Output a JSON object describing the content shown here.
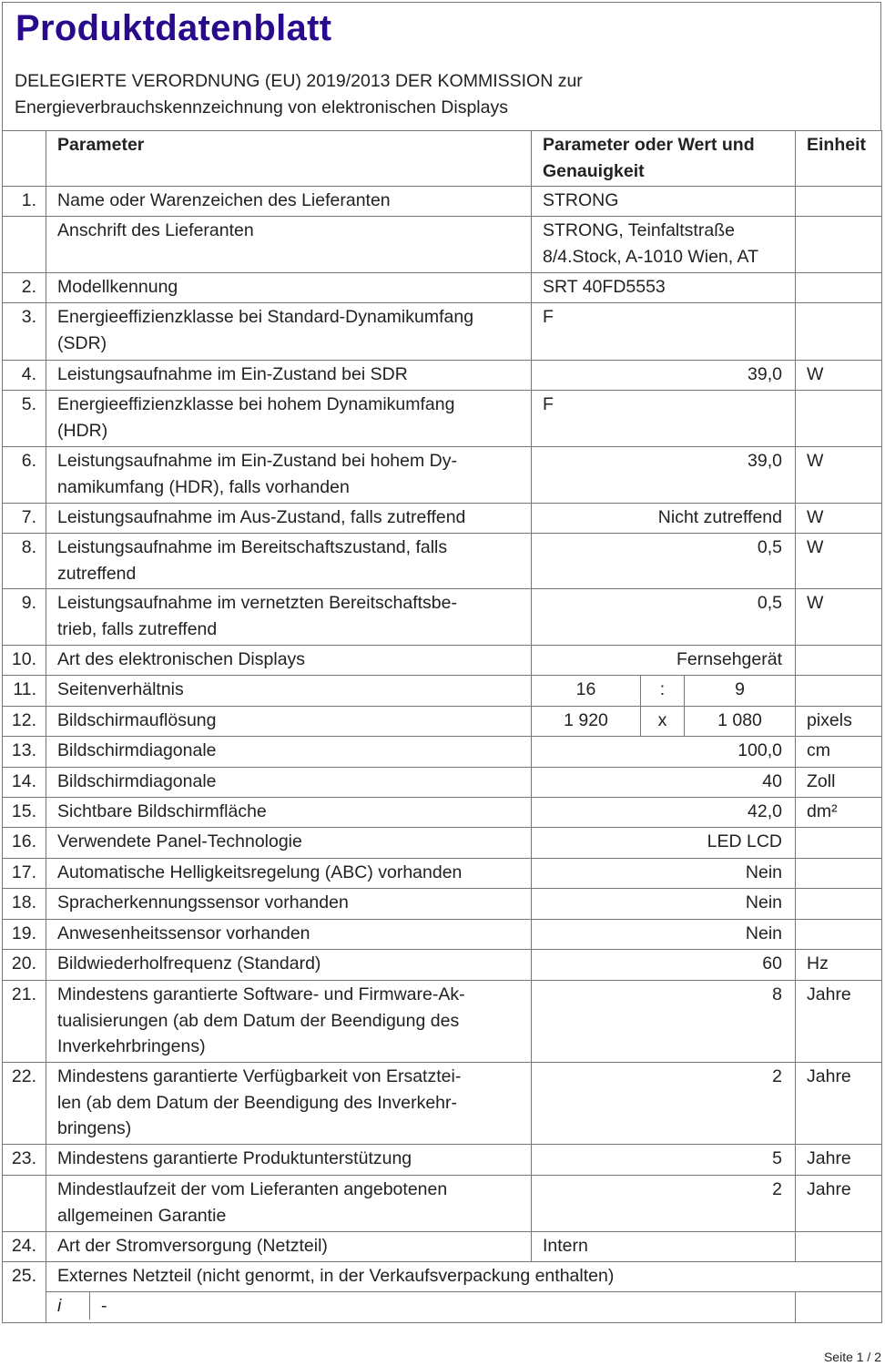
{
  "header": {
    "title": "Produktdatenblatt",
    "subtitle": "DELEGIERTE VERORDNUNG (EU) 2019/2013 DER KOMMISSION zur\nEnergieverbrauchskennzeichnung von elektronischen Displays"
  },
  "columns": {
    "param": "Parameter",
    "value": "Parameter oder Wert und\nGenauigkeit",
    "unit": "Einheit"
  },
  "colors": {
    "title": "#2a0a8c",
    "border": "#777777"
  },
  "rows": [
    {
      "num": "1.",
      "param": "Name oder Warenzeichen des Lieferanten",
      "value": "STRONG",
      "align": "left",
      "unit": "",
      "h": 33
    },
    {
      "num": "",
      "param": "Anschrift des Lieferanten",
      "value": "STRONG, Teinfaltstraße\n8/4.Stock, A-1010 Wien, AT",
      "align": "left",
      "unit": "",
      "h": 62
    },
    {
      "num": "2.",
      "param": "Modellkennung",
      "value": "SRT 40FD5553",
      "align": "left",
      "unit": "",
      "h": 33
    },
    {
      "num": "3.",
      "param": "Energieeffizienzklasse bei Standard-Dynamikumfang\n(SDR)",
      "value": "F",
      "align": "left",
      "unit": "",
      "h": 63
    },
    {
      "num": "4.",
      "param": "Leistungsaufnahme im Ein-Zustand bei SDR",
      "value": "39,0",
      "align": "right",
      "unit": "W",
      "h": 33
    },
    {
      "num": "5.",
      "param": "Energieeffizienzklasse bei hohem Dynamikumfang\n(HDR)",
      "value": "F",
      "align": "left",
      "unit": "",
      "h": 62
    },
    {
      "num": "6.",
      "param": "Leistungsaufnahme im Ein-Zustand bei hohem Dy-\nnamikumfang (HDR), falls vorhanden",
      "value": "39,0",
      "align": "right",
      "unit": "W",
      "h": 62
    },
    {
      "num": "7.",
      "param": "Leistungsaufnahme im Aus-Zustand, falls zutreffend",
      "value": "Nicht zutreffend",
      "align": "right",
      "unit": "W",
      "h": 33
    },
    {
      "num": "8.",
      "param": "Leistungsaufnahme im Bereitschaftszustand, falls\nzutreffend",
      "value": "0,5",
      "align": "right",
      "unit": "W",
      "h": 61
    },
    {
      "num": "9.",
      "param": "Leistungsaufnahme im vernetzten Bereitschaftsbe-\ntrieb, falls zutreffend",
      "value": "0,5",
      "align": "right",
      "unit": "W",
      "h": 62
    },
    {
      "num": "10.",
      "param": "Art des elektronischen Displays",
      "value": "Fernsehgerät",
      "align": "right",
      "unit": "",
      "h": 33
    },
    {
      "num": "11.",
      "param": "Seitenverhältnis",
      "split": [
        "16",
        ":",
        "9"
      ],
      "unit": "",
      "h": 34
    },
    {
      "num": "12.",
      "param": "Bildschirmauflösung",
      "split": [
        "1 920",
        "x",
        "1 080"
      ],
      "unit": "pixels",
      "h": 33
    },
    {
      "num": "13.",
      "param": "Bildschirmdiagonale",
      "value": "100,0",
      "align": "right",
      "unit": "cm",
      "h": 34
    },
    {
      "num": "14.",
      "param": "Bildschirmdiagonale",
      "value": "40",
      "align": "right",
      "unit": "Zoll",
      "h": 33
    },
    {
      "num": "15.",
      "param": "Sichtbare Bildschirmfläche",
      "value": "42,0",
      "align": "right",
      "unit": "dm²",
      "h": 33
    },
    {
      "num": "16.",
      "param": "Verwendete Panel-Technologie",
      "value": "LED LCD",
      "align": "right",
      "unit": "",
      "h": 34
    },
    {
      "num": "17.",
      "param": "Automatische Helligkeitsregelung (ABC) vorhanden",
      "value": "Nein",
      "align": "right",
      "unit": "",
      "h": 33
    },
    {
      "num": "18.",
      "param": "Spracherkennungssensor vorhanden",
      "value": "Nein",
      "align": "right",
      "unit": "",
      "h": 34
    },
    {
      "num": "19.",
      "param": "Anwesenheitssensor vorhanden",
      "value": "Nein",
      "align": "right",
      "unit": "",
      "h": 33
    },
    {
      "num": "20.",
      "param": "Bildwiederholfrequenz (Standard)",
      "value": "60",
      "align": "right",
      "unit": "Hz",
      "h": 34
    },
    {
      "num": "21.",
      "param": "Mindestens garantierte Software- und Firmware-Ak-\ntualisierungen (ab dem Datum der Beendigung des\nInverkehrbringens)",
      "value": "8",
      "align": "right",
      "unit": "Jahre",
      "h": 90
    },
    {
      "num": "22.",
      "param": "Mindestens garantierte Verfügbarkeit von Ersatztei-\nlen (ab dem Datum der Beendigung des Inverkehr-\nbringens)",
      "value": "2",
      "align": "right",
      "unit": "Jahre",
      "h": 90
    },
    {
      "num": "23.",
      "param": "Mindestens garantierte Produktunterstützung",
      "value": "5",
      "align": "right",
      "unit": "Jahre",
      "h": 34
    },
    {
      "num": "",
      "param": "Mindestlaufzeit der vom Lieferanten angebotenen\nallgemeinen Garantie",
      "value": "2",
      "align": "right",
      "unit": "Jahre",
      "h": 62
    },
    {
      "num": "24.",
      "param": "Art der Stromversorgung (Netzteil)",
      "value": "Intern",
      "align": "left",
      "unit": "",
      "h": 33
    }
  ],
  "row25": {
    "num": "25.",
    "text": "Externes Netzteil (nicht genormt, in der Verkaufsverpackung enthalten)",
    "sub_label": "i",
    "sub_value": "-"
  },
  "footer": {
    "page": "Seite 1 / 2"
  }
}
